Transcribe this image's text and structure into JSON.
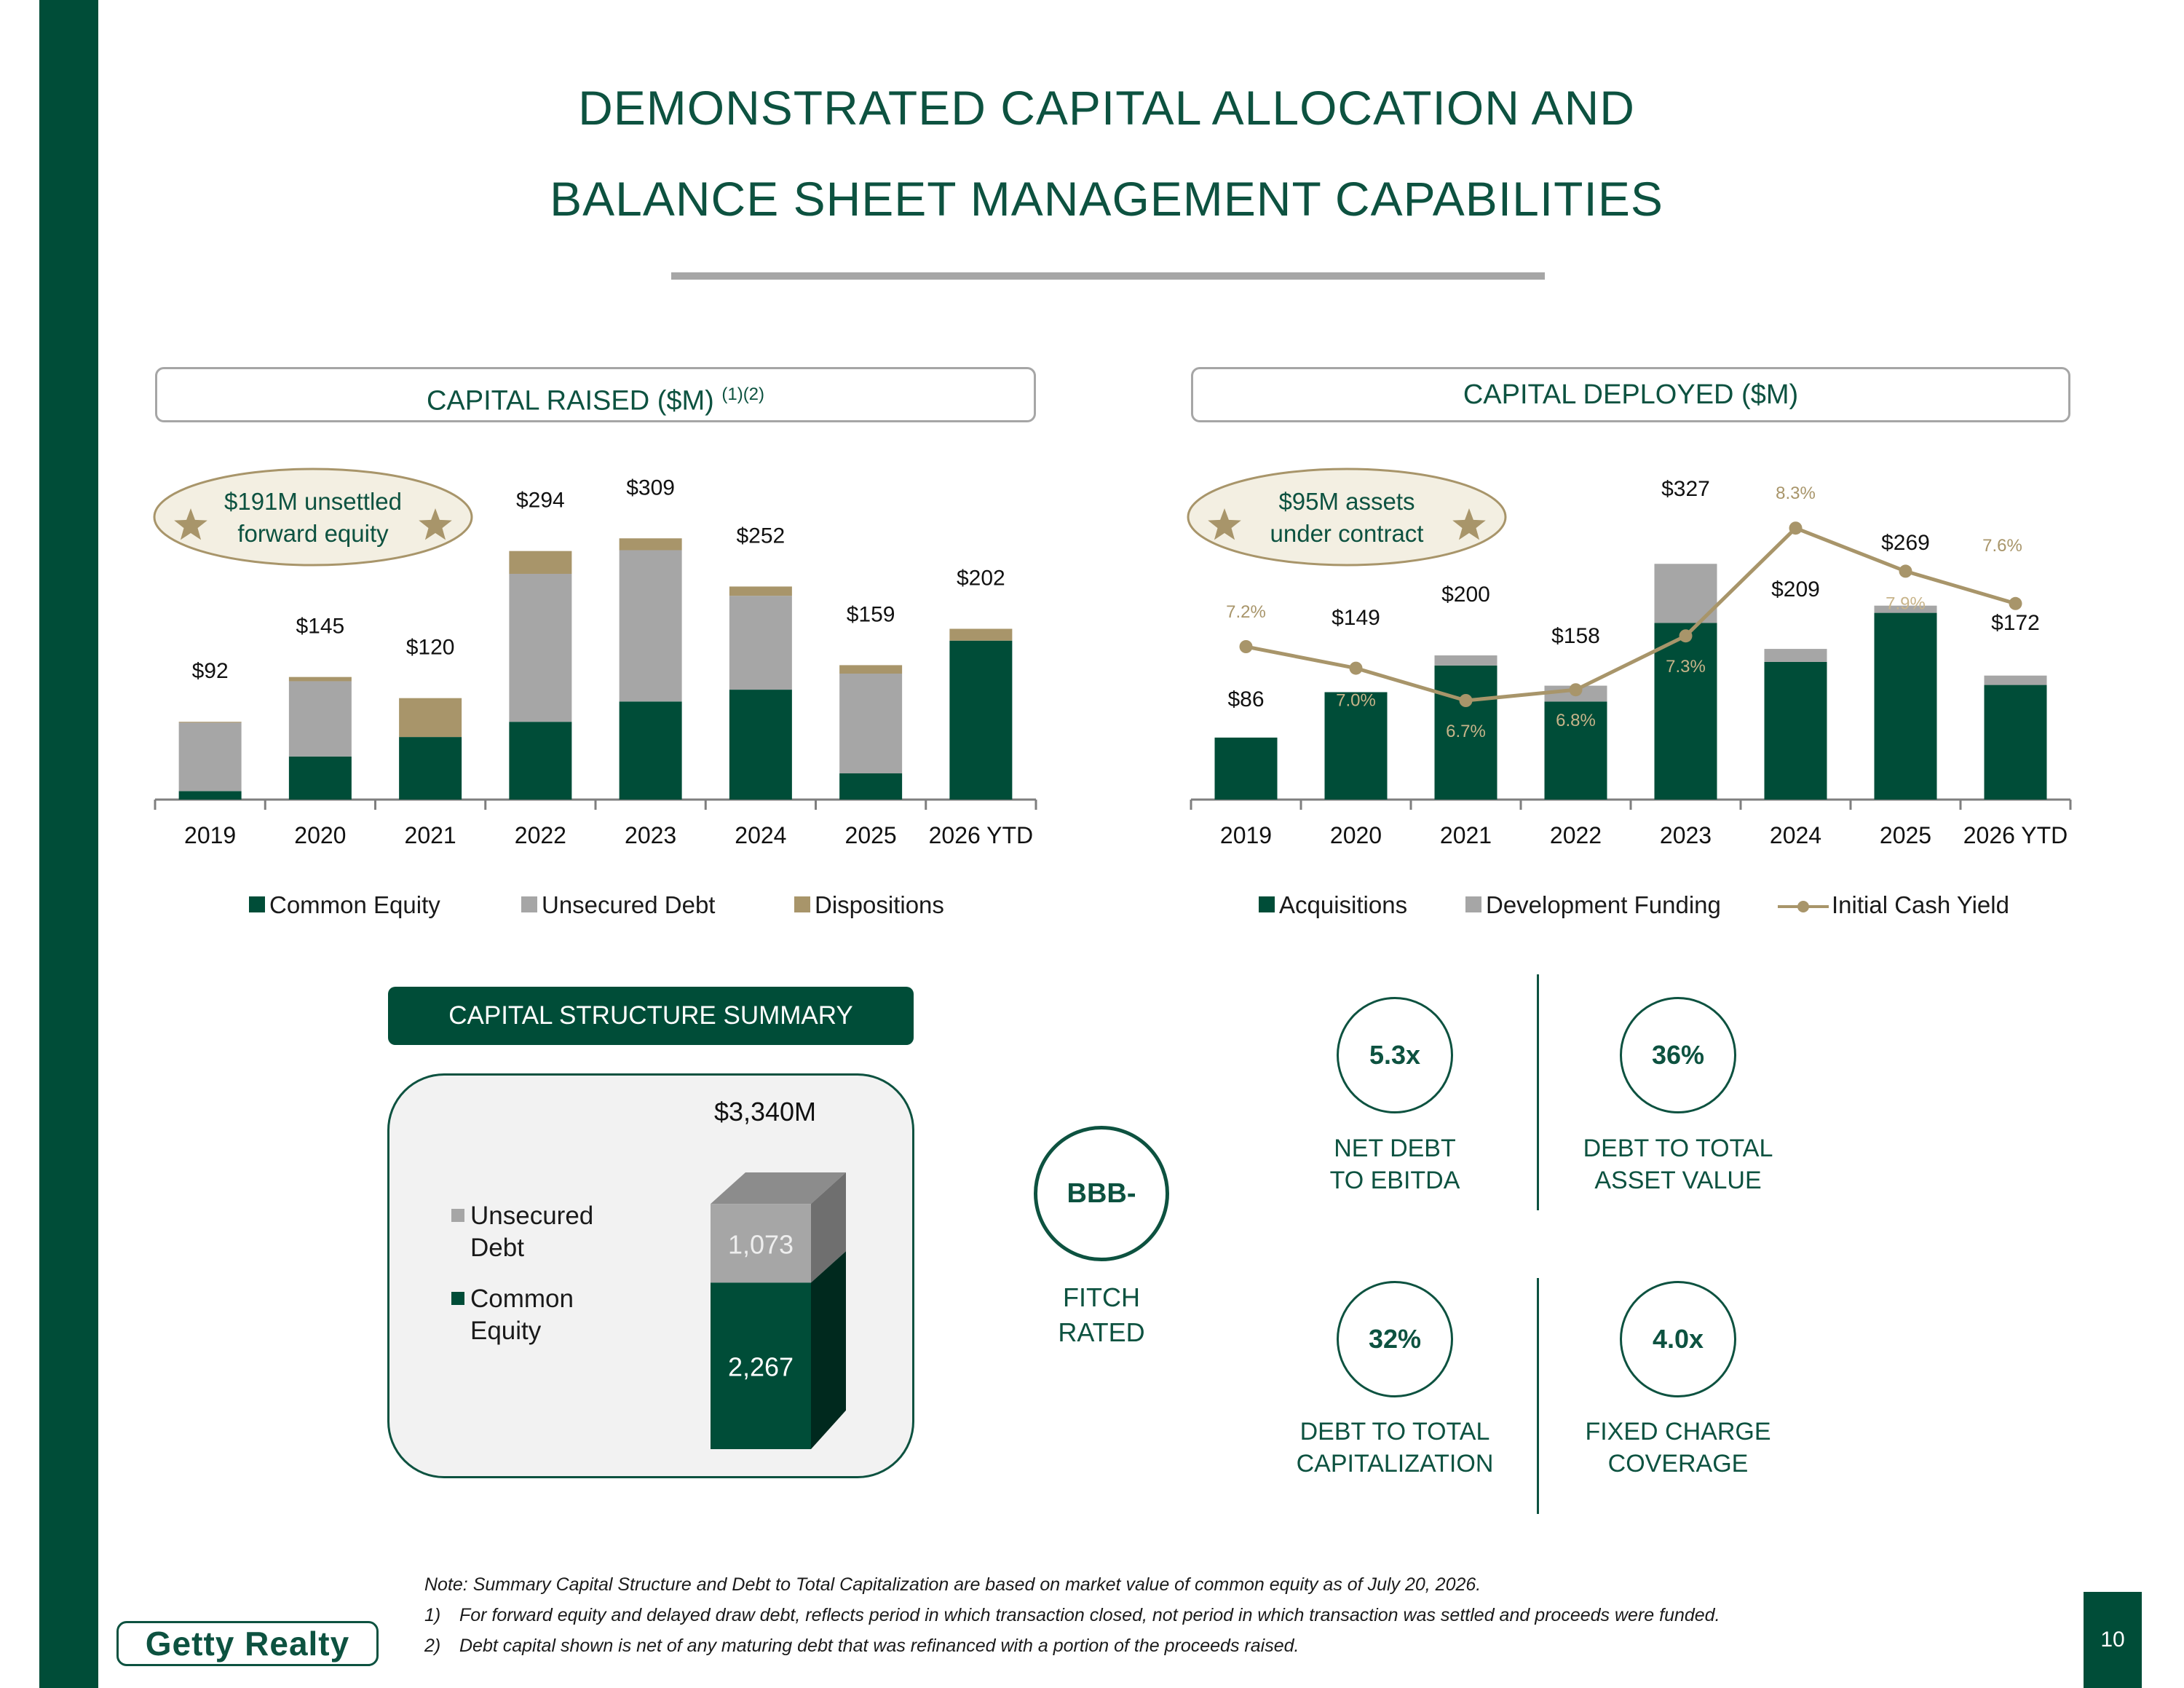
{
  "page": {
    "title_line1": "DEMONSTRATED CAPITAL ALLOCATION AND",
    "title_line2": "BALANCE SHEET MANAGEMENT CAPABILITIES",
    "page_number": "10",
    "logo_text": "Getty Realty"
  },
  "colors": {
    "dark_green": "#004d38",
    "title_green": "#0d5240",
    "gray": "#a6a6a6",
    "tan": "#a8956a",
    "callout_bg": "#f3efe2"
  },
  "capital_raised": {
    "header": "CAPITAL RAISED ($M)",
    "header_sup": "(1)(2)",
    "callout": [
      "$191M unsettled",
      "forward equity"
    ],
    "callout_icon": "star-icon"
  },
  "capital_deployed": {
    "header": "CAPITAL DEPLOYED ($M)",
    "callout": [
      "$95M assets",
      "under contract"
    ],
    "callout_icon": "star-icon"
  },
  "chart_data": [
    {
      "type": "bar",
      "stacked": true,
      "categories": [
        "2019",
        "2020",
        "2021",
        "2022",
        "2023",
        "2024",
        "2025",
        "2026 YTD"
      ],
      "series": [
        {
          "name": "Common Equity",
          "values": [
            10,
            51,
            74,
            92,
            116,
            130,
            31,
            188
          ],
          "color": "#004d38"
        },
        {
          "name": "Unsecured Debt",
          "values": [
            81,
            89,
            0,
            175,
            179,
            111,
            118,
            0
          ],
          "color": "#a6a6a6"
        },
        {
          "name": "Dispositions",
          "values": [
            1,
            5,
            46,
            27,
            14,
            11,
            10,
            14
          ],
          "color": "#a8956a"
        }
      ],
      "totals": [
        "$92",
        "$145",
        "$120",
        "$294",
        "$309",
        "$252",
        "$159",
        "$202"
      ],
      "legend_position": "bottom",
      "grid": false
    },
    {
      "type": "bar",
      "stacked": true,
      "categories": [
        "2019",
        "2020",
        "2021",
        "2022",
        "2023",
        "2024",
        "2025",
        "2026 YTD"
      ],
      "series": [
        {
          "name": "Acquisitions",
          "values": [
            86,
            149,
            186,
            136,
            245,
            191,
            259,
            159
          ],
          "color": "#004d38"
        },
        {
          "name": "Development Funding",
          "values": [
            0,
            0,
            14,
            22,
            82,
            18,
            10,
            13
          ],
          "color": "#a6a6a6"
        }
      ],
      "line_series": {
        "name": "Initial Cash Yield",
        "values": [
          7.2,
          7.0,
          6.7,
          6.8,
          7.3,
          8.3,
          7.9,
          7.6
        ],
        "labels": [
          "7.2%",
          "7.0%",
          "6.7%",
          "6.8%",
          "7.3%",
          "8.3%",
          "7.9%",
          "7.6%"
        ],
        "color": "#a8956a"
      },
      "totals": [
        "$86",
        "$149",
        "$200",
        "$158",
        "$327",
        "$209",
        "$269",
        "$172"
      ],
      "legend_position": "bottom",
      "grid": false
    }
  ],
  "capital_structure": {
    "header": "CAPITAL STRUCTURE SUMMARY",
    "total": "$3,340M",
    "legend": [
      {
        "label_lines": [
          "Unsecured",
          "Debt"
        ],
        "color": "#a6a6a6"
      },
      {
        "label_lines": [
          "Common",
          "Equity"
        ],
        "color": "#004d38"
      }
    ],
    "segments": [
      {
        "name": "Unsecured Debt",
        "value": 1073,
        "label": "1,073"
      },
      {
        "name": "Common Equity",
        "value": 2267,
        "label": "2,267"
      }
    ]
  },
  "rating": {
    "value": "BBB-",
    "label_lines": [
      "FITCH",
      "RATED"
    ]
  },
  "stats": [
    {
      "value": "5.3x",
      "label_lines": [
        "NET DEBT",
        "TO EBITDA"
      ]
    },
    {
      "value": "36%",
      "label_lines": [
        "DEBT TO TOTAL",
        "ASSET VALUE"
      ]
    },
    {
      "value": "32%",
      "label_lines": [
        "DEBT TO TOTAL",
        "CAPITALIZATION"
      ]
    },
    {
      "value": "4.0x",
      "label_lines": [
        "FIXED CHARGE",
        "COVERAGE"
      ]
    }
  ],
  "notes": {
    "note": "Note: Summary Capital Structure and Debt to Total Capitalization are based on market value of common equity as of July 20, 2026.",
    "footnotes": [
      {
        "num": "1)",
        "text": "For forward equity and delayed draw debt, reflects period in which transaction closed, not period in which transaction was settled and proceeds were funded."
      },
      {
        "num": "2)",
        "text": "Debt capital shown is net of any maturing debt that was refinanced with a portion of the proceeds raised."
      }
    ]
  }
}
